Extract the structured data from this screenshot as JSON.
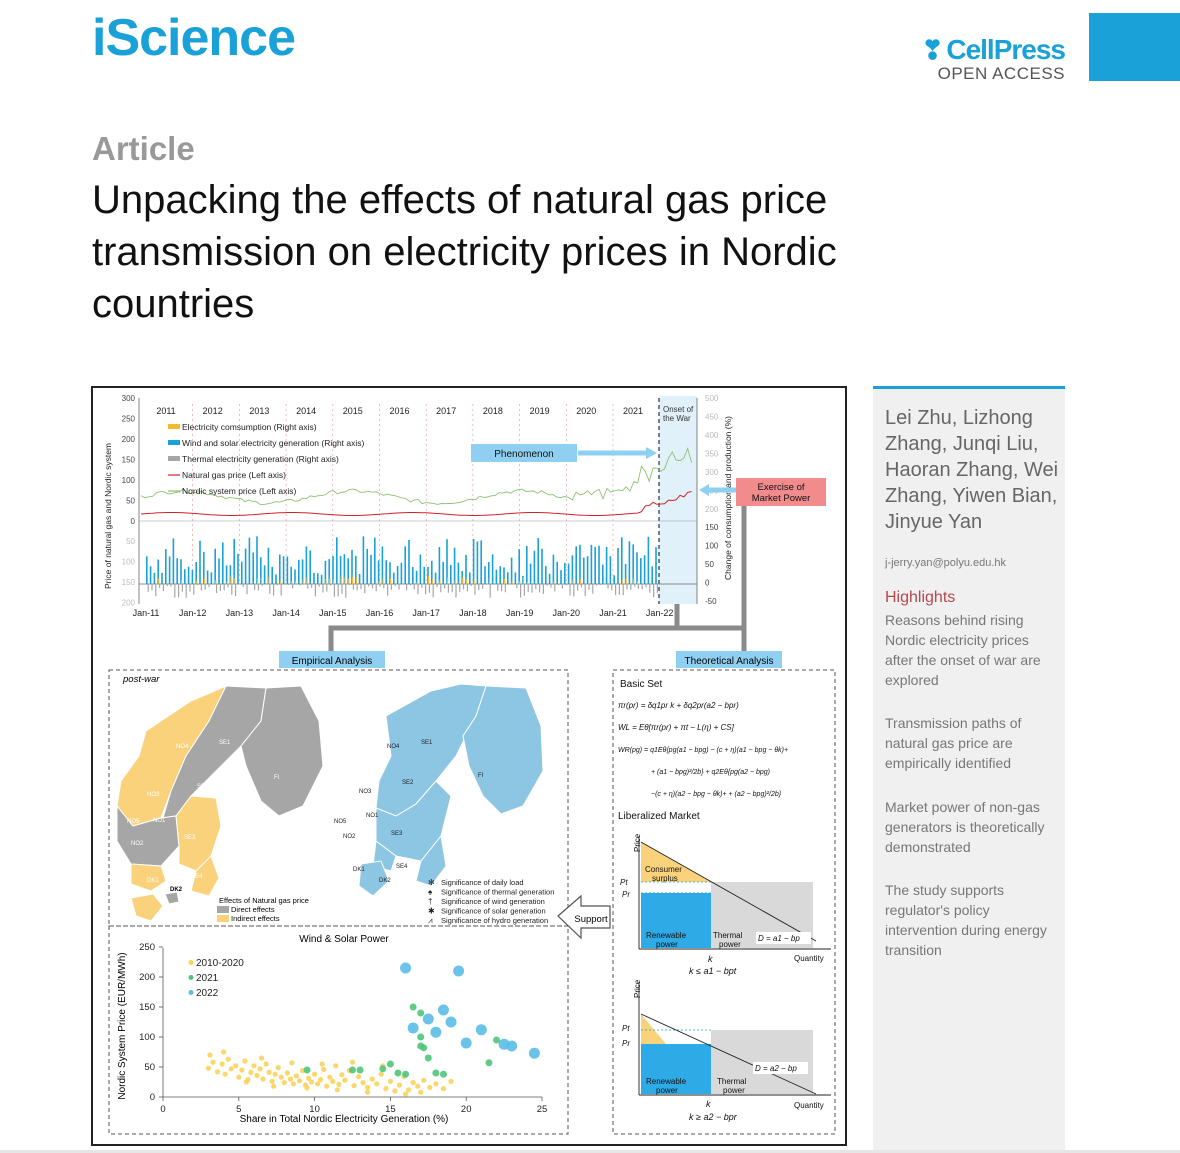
{
  "header": {
    "journal": "iScience",
    "publisher": "CellPress",
    "access": "OPEN ACCESS",
    "accent_color": "#1aa1d8"
  },
  "article": {
    "type": "Article",
    "title": "Unpacking the effects of natural gas price transmission on electricity prices in Nordic countries"
  },
  "sidebar": {
    "authors": "Lei Zhu, Lizhong Zhang, Junqi Liu, Haoran Zhang, Wei Zhang, Yiwen Bian, Jinyue Yan",
    "email": "j-jerry.yan@polyu.edu.hk",
    "highlights_title": "Highlights",
    "highlights": [
      "Reasons behind rising Nordic electricity prices after the onset of war are explored",
      "Transmission paths of natural gas price are empirically identified",
      "Market power of non-gas generators is theoretically demonstrated",
      "The study supports regulator's policy intervention during energy transition"
    ]
  },
  "abstract": {
    "top": {
      "years": [
        "2011",
        "2012",
        "2013",
        "2014",
        "2015",
        "2016",
        "2017",
        "2018",
        "2019",
        "2020",
        "2021"
      ],
      "x_ticks": [
        "Jan-11",
        "Jan-12",
        "Jan-13",
        "Jan-14",
        "Jan-15",
        "Jan-16",
        "Jan-17",
        "Jan-18",
        "Jan-19",
        "Jan-20",
        "Jan-21",
        "Jan-22"
      ],
      "left_ticks_upper": [
        "300",
        "250",
        "200",
        "150",
        "100",
        "50",
        "0"
      ],
      "left_ticks_lower": [
        "50",
        "100",
        "150",
        "200"
      ],
      "right_ticks_upper": [
        "500",
        "450",
        "400",
        "350",
        "300",
        "250",
        "200"
      ],
      "right_ticks_lower": [
        "150",
        "100",
        "50",
        "0",
        "-50"
      ],
      "left_axis_label": "Price of natural gas and Nordic system",
      "right_axis_label": "Change of consumption and production (%)",
      "legend": [
        {
          "label": "Electricity comsumption (Right axis)",
          "color": "#f5b82e",
          "kind": "bar"
        },
        {
          "label": "Wind and solar electricity generation (Right axis)",
          "color": "#1aa1d8",
          "kind": "bar"
        },
        {
          "label": "Thermal  electricity generation (Right axis)",
          "color": "#a6a6a6",
          "kind": "bar"
        },
        {
          "label": "Natural gas price (Left axis)",
          "color": "#d0202a",
          "kind": "line"
        },
        {
          "label": "Nordic system price (Left axis)",
          "color": "#8dc270",
          "kind": "line"
        }
      ],
      "onset_label_1": "Onset of",
      "onset_label_2": "the War",
      "phenomenon": "Phenomenon",
      "market_power_1": "Exercise of",
      "market_power_2": "Market Power"
    },
    "empirical_label": "Empirical  Analysis",
    "theoretical_label": "Theoretical Analysis",
    "map": {
      "post_war": "post-war",
      "regions_left": [
        "NO4",
        "SE1",
        "SE2",
        "FI",
        "NO3",
        "NO5",
        "NO1",
        "NO2",
        "SE3",
        "SE4",
        "DK1",
        "DK2"
      ],
      "regions_right": [
        "NO4",
        "SE1",
        "SE2",
        "FI",
        "NO3",
        "NO5",
        "NO1",
        "NO2",
        "SE3",
        "SE4",
        "DK1",
        "DK2"
      ],
      "effects_title": "Effects of Natural gas  price",
      "direct": "Direct effects",
      "indirect": "Indirect effects",
      "direct_color": "#a6a6a6",
      "indirect_color": "#f9d27b",
      "significance": [
        "Significance of daily load",
        "Significance of thermal generation",
        "Significance of wind generation",
        "Significance of solar generation",
        "Significance of hydro generation"
      ]
    },
    "support": "Support",
    "theory": {
      "basic_set": "Basic Set",
      "eq1": "πr(pr) = δq1pr k + δq2pr(a2 − bpr)",
      "eq2": "WL = Eθ[πr(pr) + πt − L(η) + CS]",
      "eq3": "WR(pg) = q1Eθ{pg(a1 − bpg) − (c + η)(a1 − bpg − θk)+",
      "eq4": "+ (a1 − bpg)²/2b} + q2Eθ{pg(a2 − bpg)",
      "eq5": "−(c + η)(a2 − bpg − θk)+ + (a2 − bpg)²/2b}",
      "liberalized": "Liberalized Market",
      "price": "Price",
      "quantity": "Quantity",
      "consumer_surplus_1": "Consumer",
      "consumer_surplus_2": "surplus",
      "renewable_1": "Renewable",
      "renewable_2": "power",
      "thermal_1": "Thermal",
      "thermal_2": "power",
      "pt": "Pt",
      "pr": "Pr",
      "k": "k",
      "d1": "D = a1 − bp",
      "d2": "D = a2 − bp",
      "cond1": "k ≤ a1 − bpt",
      "cond2": "k ≥ a2 − bpr"
    }
  },
  "chart_data": {
    "type": "scatter",
    "title": "Wind & Solar Power",
    "xlabel": "Share in Total Nordic Electricity Generation (%)",
    "ylabel": "Nordic System Price (EUR/MWh)",
    "xlim": [
      0,
      25
    ],
    "ylim": [
      0,
      250
    ],
    "x_ticks": [
      0,
      5,
      10,
      15,
      20,
      25
    ],
    "y_ticks": [
      0,
      50,
      100,
      150,
      200,
      250
    ],
    "legend_position": "top-left",
    "series": [
      {
        "name": "2010-2020",
        "color": "#f9d35a",
        "size": 2.6,
        "points": [
          [
            3,
            48
          ],
          [
            3.3,
            58
          ],
          [
            3.6,
            42
          ],
          [
            3.9,
            55
          ],
          [
            4.1,
            38
          ],
          [
            4.3,
            63
          ],
          [
            4.5,
            47
          ],
          [
            4.8,
            52
          ],
          [
            5,
            33
          ],
          [
            5.2,
            45
          ],
          [
            5.4,
            60
          ],
          [
            5.6,
            29
          ],
          [
            5.8,
            41
          ],
          [
            6,
            52
          ],
          [
            6.2,
            36
          ],
          [
            6.4,
            47
          ],
          [
            6.6,
            30
          ],
          [
            6.8,
            55
          ],
          [
            7,
            41
          ],
          [
            7.2,
            26
          ],
          [
            7.4,
            38
          ],
          [
            7.6,
            49
          ],
          [
            7.8,
            33
          ],
          [
            8,
            24
          ],
          [
            8.2,
            40
          ],
          [
            8.4,
            30
          ],
          [
            8.6,
            22
          ],
          [
            8.8,
            35
          ],
          [
            9,
            27
          ],
          [
            9.2,
            44
          ],
          [
            9.4,
            20
          ],
          [
            9.6,
            31
          ],
          [
            9.8,
            25
          ],
          [
            10,
            38
          ],
          [
            10.2,
            22
          ],
          [
            10.4,
            29
          ],
          [
            10.6,
            46
          ],
          [
            10.8,
            18
          ],
          [
            11,
            33
          ],
          [
            11.2,
            26
          ],
          [
            11.4,
            52
          ],
          [
            11.6,
            21
          ],
          [
            11.8,
            37
          ],
          [
            12,
            28
          ],
          [
            12.3,
            44
          ],
          [
            12.6,
            19
          ],
          [
            12.9,
            34
          ],
          [
            13.2,
            24
          ],
          [
            13.5,
            16
          ],
          [
            13.8,
            30
          ],
          [
            14.1,
            22
          ],
          [
            14.4,
            38
          ],
          [
            14.7,
            14
          ],
          [
            15,
            26
          ],
          [
            15.3,
            10
          ],
          [
            15.6,
            20
          ],
          [
            15.9,
            34
          ],
          [
            16.2,
            12
          ],
          [
            16.5,
            24
          ],
          [
            16.8,
            18
          ],
          [
            17.2,
            28
          ],
          [
            17.6,
            16
          ],
          [
            18,
            22
          ],
          [
            18.5,
            14
          ],
          [
            19,
            26
          ],
          [
            3.1,
            70
          ],
          [
            4,
            75
          ],
          [
            6.5,
            65
          ],
          [
            8.5,
            57
          ],
          [
            10.5,
            55
          ],
          [
            12.5,
            58
          ],
          [
            14.5,
            52
          ],
          [
            5.5,
            25
          ],
          [
            7.3,
            18
          ],
          [
            9.5,
            15
          ],
          [
            11.5,
            12
          ],
          [
            13.5,
            8
          ],
          [
            16,
            5
          ],
          [
            17,
            8
          ]
        ]
      },
      {
        "name": "2021",
        "color": "#4fc47a",
        "size": 3.5,
        "points": [
          [
            9.5,
            45
          ],
          [
            12.5,
            45
          ],
          [
            13,
            45
          ],
          [
            14.5,
            47
          ],
          [
            15,
            55
          ],
          [
            15.5,
            40
          ],
          [
            16,
            38
          ],
          [
            16.5,
            150
          ],
          [
            17,
            140
          ],
          [
            17,
            100
          ],
          [
            17,
            85
          ],
          [
            17.2,
            82
          ],
          [
            17.5,
            65
          ],
          [
            18,
            40
          ],
          [
            18.5,
            38
          ],
          [
            21.5,
            57
          ],
          [
            22,
            95
          ]
        ]
      },
      {
        "name": "2022",
        "color": "#5bbde8",
        "size": 5.5,
        "points": [
          [
            16,
            215
          ],
          [
            19.5,
            210
          ],
          [
            18.5,
            145
          ],
          [
            17.5,
            130
          ],
          [
            16.5,
            115
          ],
          [
            19,
            125
          ],
          [
            18,
            108
          ],
          [
            21,
            112
          ],
          [
            20,
            90
          ],
          [
            22.5,
            88
          ],
          [
            23,
            85
          ],
          [
            24.5,
            73
          ]
        ]
      }
    ]
  }
}
